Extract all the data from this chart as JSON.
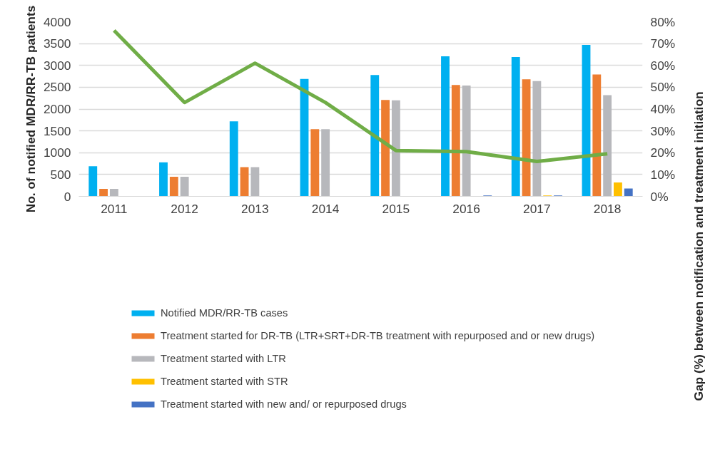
{
  "chart_data": {
    "type": "bar",
    "categories": [
      "2011",
      "2012",
      "2013",
      "2014",
      "2015",
      "2016",
      "2017",
      "2018"
    ],
    "ylabel": "No. of notified MDR/RR-TB patients",
    "y2label": "Gap (%) between notification and treatment initiation",
    "ylim": [
      0,
      4000
    ],
    "yticks": [
      0,
      500,
      1000,
      1500,
      2000,
      2500,
      3000,
      3500,
      4000
    ],
    "y2lim": [
      0,
      80
    ],
    "y2ticks": [
      {
        "value": 0,
        "label": "0%"
      },
      {
        "value": 10,
        "label": "10%"
      },
      {
        "value": 20,
        "label": "20%"
      },
      {
        "value": 30,
        "label": "30%"
      },
      {
        "value": 40,
        "label": "40%"
      },
      {
        "value": 50,
        "label": "50%"
      },
      {
        "value": 60,
        "label": "60%"
      },
      {
        "value": 70,
        "label": "70%"
      },
      {
        "value": 80,
        "label": "80%"
      }
    ],
    "grid": "y",
    "legend": "bottom",
    "series": [
      {
        "name": "Notified MDR/RR-TB cases",
        "color": "#00b0f0",
        "values": [
          690,
          780,
          1720,
          2690,
          2780,
          3210,
          3190,
          3470
        ]
      },
      {
        "name": "Treatment started for DR-TB (LTR+SRT+DR-TB treatment with repurposed and or new drugs)",
        "color": "#ed7d31",
        "values": [
          170,
          450,
          670,
          1540,
          2210,
          2550,
          2680,
          2790
        ]
      },
      {
        "name": "Treatment started with LTR",
        "color": "#b7b8bc",
        "values": [
          170,
          450,
          670,
          1540,
          2200,
          2540,
          2640,
          2320
        ]
      },
      {
        "name": "Treatment started with STR",
        "color": "#ffc000",
        "values": [
          0,
          0,
          0,
          0,
          0,
          0,
          20,
          320
        ]
      },
      {
        "name": "Treatment started with new and/ or repurposed drugs",
        "color": "#4472c4",
        "values": [
          0,
          0,
          0,
          0,
          0,
          20,
          20,
          180
        ]
      },
      {
        "type": "line",
        "axis": "y2",
        "color": "#70ad47",
        "values": [
          76,
          43,
          61,
          43,
          21,
          20.5,
          16,
          19.5
        ]
      }
    ]
  }
}
